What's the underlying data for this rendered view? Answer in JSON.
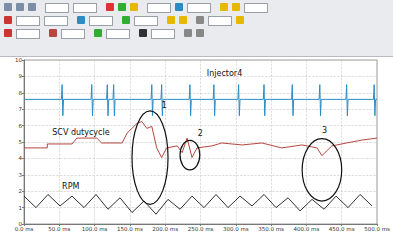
{
  "chart_data": {
    "type": "line",
    "xlim": [
      0,
      500
    ],
    "xticks": [
      {
        "value": 0,
        "label": "0.0 ms"
      },
      {
        "value": 50,
        "label": "50.0 ms"
      },
      {
        "value": 100,
        "label": "100.0 ms"
      },
      {
        "value": 150,
        "label": "150.0 ms"
      },
      {
        "value": 200,
        "label": "200.0 ms"
      },
      {
        "value": 250,
        "label": "250.0 ms"
      },
      {
        "value": 300,
        "label": "300.0 ms"
      },
      {
        "value": 350,
        "label": "350.0 ms"
      },
      {
        "value": 400,
        "label": "400.0 ms"
      },
      {
        "value": 450,
        "label": "450.0 ms"
      },
      {
        "value": 500,
        "label": "500.0 ms"
      }
    ],
    "ylim": [
      0,
      10
    ],
    "yticks": [
      0,
      1,
      2,
      3,
      4,
      5,
      6,
      7,
      8,
      9,
      10
    ],
    "grid": true,
    "series": [
      {
        "name": "Injector4",
        "color": "#2b8cc4",
        "x": [
          0,
          53,
          54,
          55,
          56,
          95,
          96,
          97,
          98,
          117,
          118,
          119,
          120,
          126,
          127,
          128,
          129,
          180,
          181,
          182,
          183,
          194,
          195,
          196,
          197,
          234,
          235,
          236,
          237,
          268,
          269,
          270,
          271,
          303,
          304,
          305,
          306,
          339,
          340,
          341,
          342,
          379,
          380,
          381,
          382,
          418,
          419,
          420,
          421,
          456,
          457,
          458,
          459,
          495,
          496,
          497,
          498,
          500
        ],
        "values": [
          7.6,
          7.6,
          8.5,
          6.6,
          7.6,
          7.6,
          8.5,
          6.6,
          7.6,
          7.6,
          8.5,
          6.6,
          7.6,
          7.6,
          8.5,
          6.6,
          7.6,
          7.6,
          8.5,
          6.6,
          7.6,
          7.6,
          8.5,
          6.6,
          7.6,
          7.6,
          8.5,
          6.6,
          7.6,
          7.6,
          8.5,
          6.6,
          7.6,
          7.6,
          8.5,
          6.6,
          7.6,
          7.6,
          8.5,
          6.6,
          7.6,
          7.6,
          8.5,
          6.6,
          7.6,
          7.6,
          8.5,
          6.6,
          7.6,
          7.6,
          8.5,
          6.6,
          7.6,
          7.6,
          8.5,
          6.6,
          7.6,
          7.6
        ]
      },
      {
        "name": "SCV dutycycle",
        "color": "#b5473f",
        "x": [
          0,
          33,
          33,
          68,
          75,
          103,
          110,
          139,
          146,
          160,
          167,
          174,
          181,
          188,
          195,
          202,
          217,
          224,
          231,
          238,
          245,
          266,
          280,
          309,
          337,
          365,
          394,
          415,
          422,
          436,
          457,
          479,
          500
        ],
        "values": [
          4.64,
          4.64,
          4.88,
          4.88,
          5.24,
          5.24,
          4.94,
          4.94,
          5.54,
          6.13,
          6.25,
          5.83,
          5.95,
          4.64,
          4.05,
          4.64,
          4.76,
          4.35,
          5.24,
          4.05,
          4.64,
          4.76,
          4.94,
          4.82,
          4.94,
          4.64,
          4.82,
          4.64,
          4.17,
          4.76,
          4.94,
          5.12,
          5.24
        ]
      },
      {
        "name": "RPM",
        "color": "#303030",
        "x": [
          0,
          17,
          34,
          51,
          68,
          85,
          102,
          119,
          136,
          153,
          170,
          187,
          204,
          221,
          238,
          255,
          272,
          289,
          306,
          323,
          340,
          357,
          374,
          391,
          408,
          425,
          442,
          459,
          476,
          493
        ],
        "values": [
          1.7,
          1.0,
          1.8,
          1.1,
          1.7,
          1.0,
          1.8,
          0.9,
          1.6,
          0.7,
          1.4,
          0.6,
          1.5,
          0.9,
          1.7,
          1.0,
          1.8,
          1.0,
          1.7,
          1.1,
          1.8,
          1.0,
          1.6,
          0.8,
          1.5,
          0.9,
          1.7,
          1.0,
          1.8,
          1.1
        ]
      }
    ],
    "annotations": [
      {
        "text": "Injector4",
        "x": 259,
        "y": 9.2
      },
      {
        "text": "SCV dutycycle",
        "x": 40,
        "y": 5.6
      },
      {
        "text": "RPM",
        "x": 54,
        "y": 2.3
      },
      {
        "text": "1",
        "x": 195,
        "y": 7.2
      },
      {
        "text": "2",
        "x": 246,
        "y": 5.5
      },
      {
        "text": "3",
        "x": 422,
        "y": 5.7
      }
    ],
    "ellipses": [
      {
        "xlim": [
          153,
          204
        ],
        "ylim": [
          1.2,
          6.9
        ]
      },
      {
        "xlim": [
          221,
          249
        ],
        "ylim": [
          3.3,
          5.1
        ]
      },
      {
        "xlim": [
          394,
          450
        ],
        "ylim": [
          1.4,
          5.2
        ]
      }
    ]
  }
}
